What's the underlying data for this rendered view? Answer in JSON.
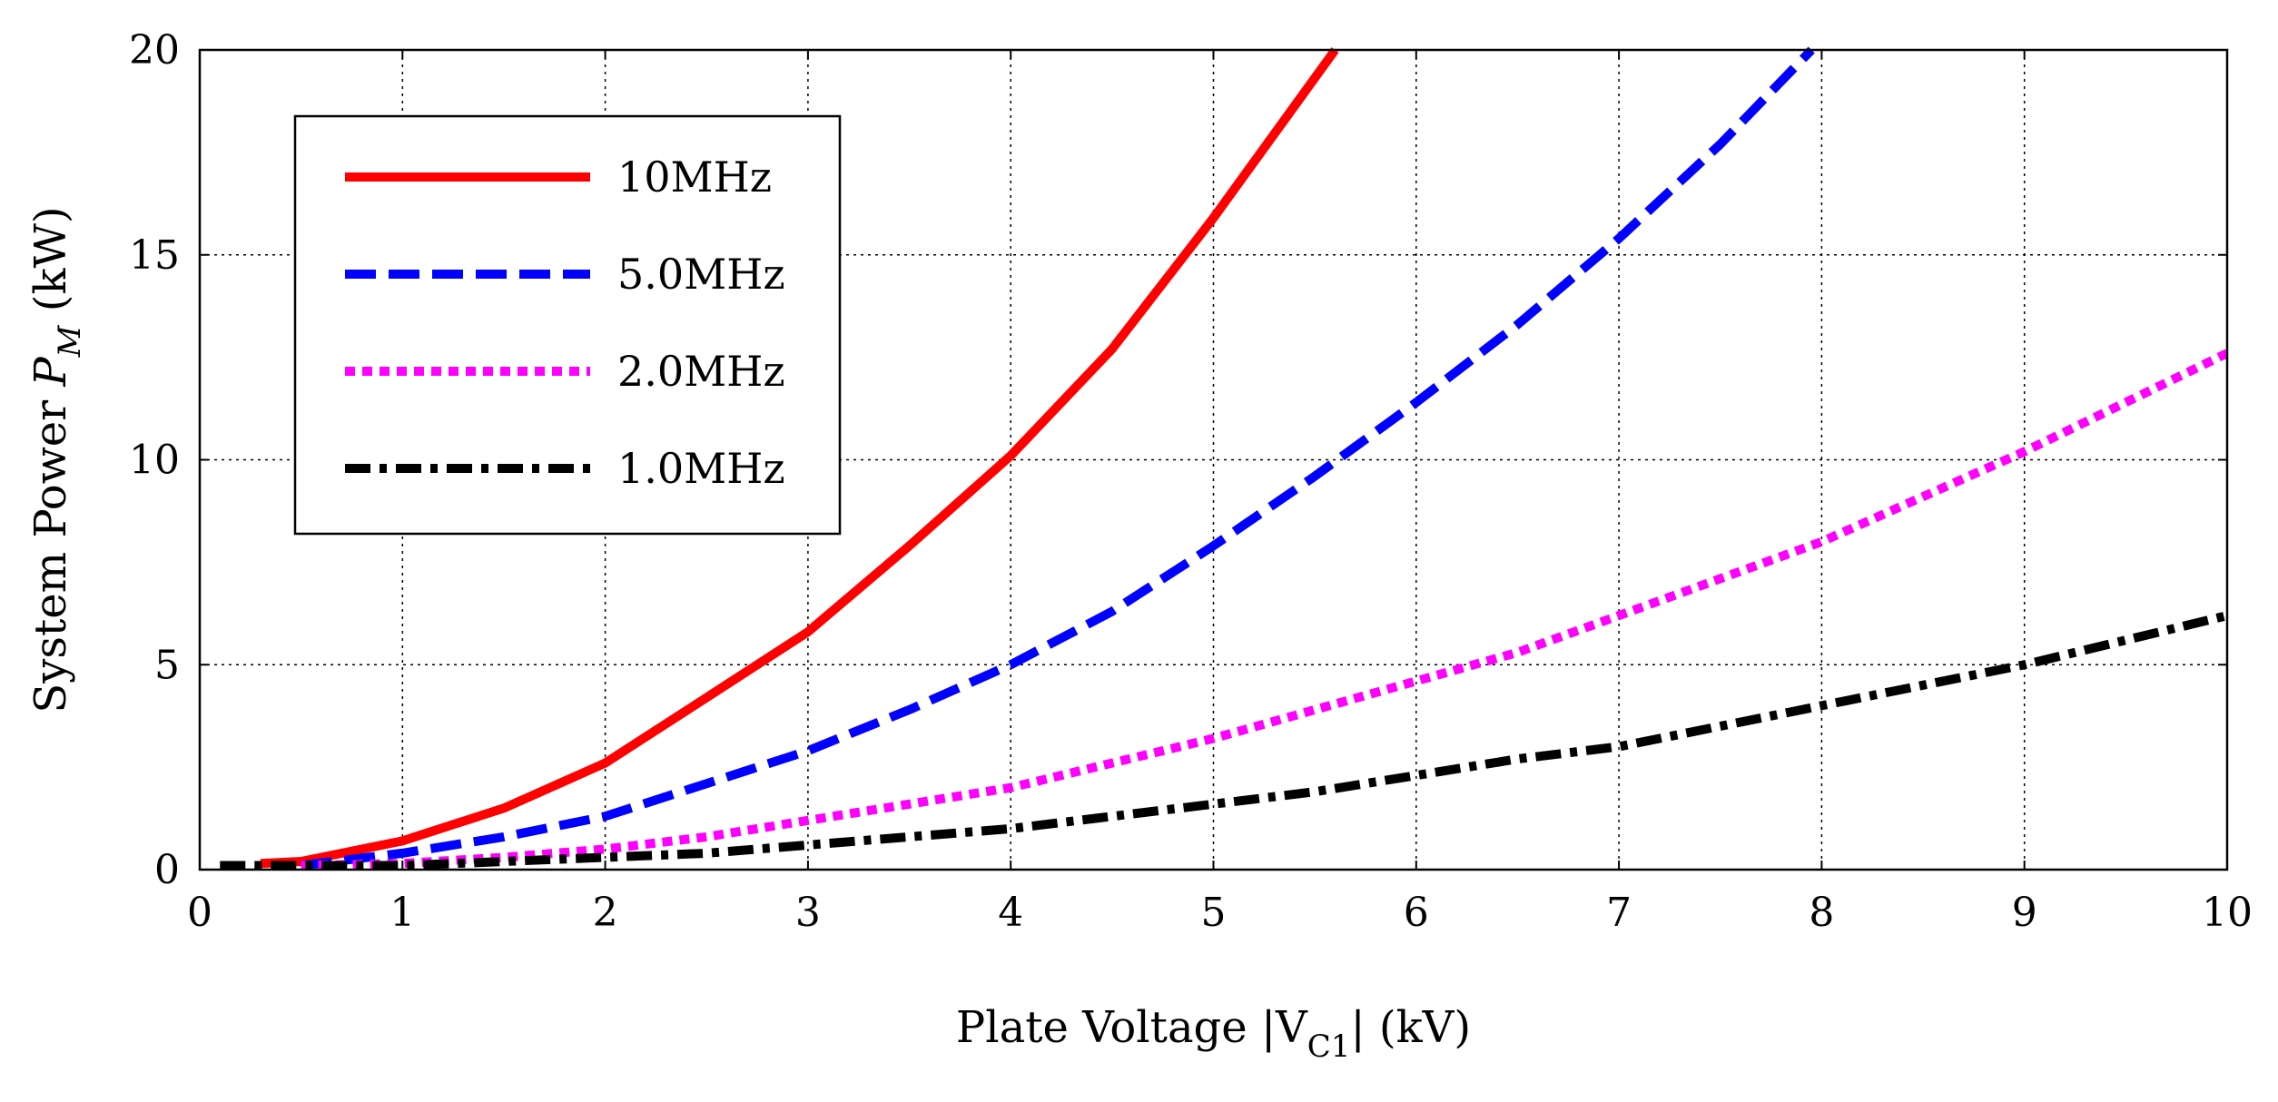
{
  "chart_data": {
    "type": "line",
    "title": "",
    "xlabel": {
      "main": "Plate Voltage |V",
      "sub": "C1",
      "tail": "| (kV)"
    },
    "ylabel": {
      "main": "System Power ",
      "var": "P",
      "sub": "M",
      "tail": " (kW)"
    },
    "xlim": [
      0,
      10
    ],
    "ylim": [
      0,
      20
    ],
    "xticks": [
      "0",
      "1",
      "2",
      "3",
      "4",
      "5",
      "6",
      "7",
      "8",
      "9",
      "10"
    ],
    "yticks": [
      "0",
      "5",
      "10",
      "15",
      "20"
    ],
    "grid": true,
    "legend_position": "top-left",
    "series": [
      {
        "name": "10MHz",
        "color": "#ff0000",
        "style": "solid",
        "x": [
          0.3,
          0.5,
          1.0,
          1.5,
          2.0,
          2.5,
          3.0,
          3.5,
          4.0,
          4.5,
          5.0,
          5.6
        ],
        "y": [
          0.15,
          0.2,
          0.7,
          1.5,
          2.6,
          4.2,
          5.8,
          7.9,
          10.1,
          12.7,
          15.9,
          20.0
        ]
      },
      {
        "name": "5.0MHz",
        "color": "#0000ff",
        "style": "dashed",
        "x": [
          0.5,
          1.0,
          1.5,
          2.0,
          2.5,
          3.0,
          3.5,
          4.0,
          4.5,
          5.0,
          5.5,
          6.0,
          6.5,
          7.0,
          7.5,
          7.95
        ],
        "y": [
          0.1,
          0.4,
          0.8,
          1.3,
          2.1,
          2.9,
          3.9,
          5.0,
          6.3,
          7.9,
          9.6,
          11.4,
          13.3,
          15.4,
          17.7,
          20.0
        ]
      },
      {
        "name": "2.0MHz",
        "color": "#ff00ff",
        "style": "dotted",
        "x": [
          0.5,
          1.0,
          1.5,
          2.0,
          2.5,
          3.0,
          3.5,
          4.0,
          4.5,
          5.0,
          5.5,
          6.0,
          6.5,
          7.0,
          7.5,
          8.0,
          8.5,
          9.0,
          9.5,
          10.0
        ],
        "y": [
          0.1,
          0.15,
          0.3,
          0.5,
          0.8,
          1.2,
          1.6,
          2.0,
          2.6,
          3.2,
          3.9,
          4.6,
          5.3,
          6.2,
          7.1,
          8.0,
          9.1,
          10.2,
          11.4,
          12.6
        ]
      },
      {
        "name": "1.0MHz",
        "color": "#000000",
        "style": "dashdot",
        "x": [
          0.1,
          0.5,
          1.0,
          1.5,
          2.0,
          2.5,
          3.0,
          3.5,
          4.0,
          4.5,
          5.0,
          5.5,
          6.0,
          6.5,
          7.0,
          7.5,
          8.0,
          8.5,
          9.0,
          9.5,
          10.0
        ],
        "y": [
          0.1,
          0.1,
          0.1,
          0.2,
          0.3,
          0.4,
          0.6,
          0.8,
          1.0,
          1.3,
          1.6,
          1.9,
          2.3,
          2.7,
          3.0,
          3.5,
          4.0,
          4.5,
          5.0,
          5.6,
          6.2
        ]
      }
    ]
  }
}
